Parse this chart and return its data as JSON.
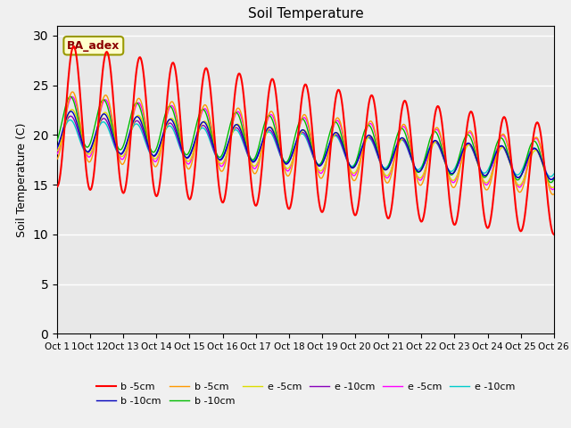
{
  "title": "Soil Temperature",
  "ylabel": "Soil Temperature (C)",
  "ylim": [
    0,
    31
  ],
  "yticks": [
    0,
    5,
    10,
    15,
    20,
    25,
    30
  ],
  "xtick_labels": [
    "Oct 1",
    "1Oct 12",
    "Oct 13",
    "Oct 14",
    "Oct 15",
    "Oct 16",
    "Oct 17",
    "Oct 18",
    "Oct 19",
    "Oct 20",
    "Oct 21",
    "Oct 22",
    "Oct 23",
    "Oct 24",
    "Oct 25",
    "Oct 26"
  ],
  "annotation_text": "BA_adex",
  "fig_bg": "#f0f0f0",
  "ax_bg": "#e8e8e8",
  "series_colors": [
    "#ff0000",
    "#0000bb",
    "#ff9900",
    "#00bb00",
    "#dddd00",
    "#8800bb",
    "#ff00ff",
    "#00cccc"
  ],
  "series_labels": [
    "b -5cm",
    "b -10cm",
    "b -5cm",
    "b -10cm",
    "e -5cm",
    "e -10cm",
    "e -5cm",
    "e -10cm"
  ],
  "n_days": 25,
  "pts_per_day": 24,
  "cycles_per_day": 1.5
}
